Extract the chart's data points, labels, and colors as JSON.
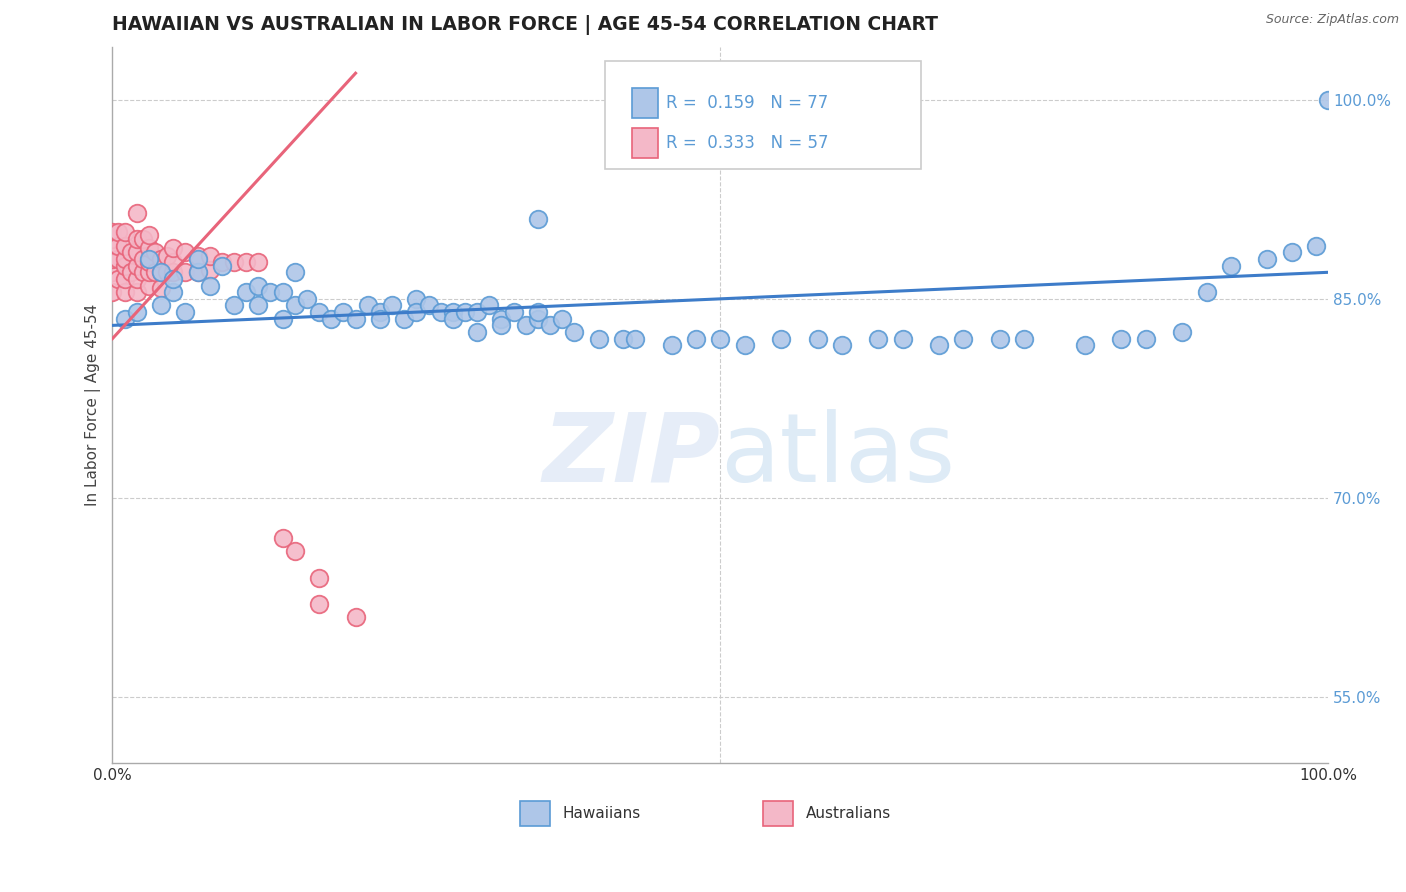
{
  "title": "HAWAIIAN VS AUSTRALIAN IN LABOR FORCE | AGE 45-54 CORRELATION CHART",
  "source_text": "Source: ZipAtlas.com",
  "ylabel": "In Labor Force | Age 45-54",
  "xlim": [
    0.0,
    1.0
  ],
  "ylim": [
    0.5,
    1.04
  ],
  "y_ticks_right": [
    0.55,
    0.7,
    0.85,
    1.0
  ],
  "y_tick_labels_right": [
    "55.0%",
    "70.0%",
    "85.0%",
    "100.0%"
  ],
  "hawaiian_R": "0.159",
  "hawaiian_N": "77",
  "australian_R": "0.333",
  "australian_N": "57",
  "hawaiian_color": "#aec6e8",
  "hawaiian_edge_color": "#5b9bd5",
  "australian_color": "#f4b8c8",
  "australian_edge_color": "#e8647a",
  "hawaiian_line_color": "#3d7cc9",
  "australian_line_color": "#e8647a",
  "watermark_zip": "ZIP",
  "watermark_atlas": "atlas",
  "hawaiians_x": [
    0.01,
    0.02,
    0.03,
    0.04,
    0.04,
    0.05,
    0.05,
    0.06,
    0.07,
    0.07,
    0.08,
    0.09,
    0.1,
    0.11,
    0.12,
    0.12,
    0.13,
    0.14,
    0.14,
    0.15,
    0.15,
    0.16,
    0.17,
    0.18,
    0.19,
    0.2,
    0.21,
    0.22,
    0.22,
    0.23,
    0.24,
    0.25,
    0.25,
    0.26,
    0.27,
    0.28,
    0.28,
    0.29,
    0.3,
    0.3,
    0.31,
    0.32,
    0.32,
    0.33,
    0.34,
    0.35,
    0.35,
    0.36,
    0.37,
    0.38,
    0.4,
    0.42,
    0.43,
    0.46,
    0.48,
    0.5,
    0.52,
    0.55,
    0.58,
    0.6,
    0.63,
    0.65,
    0.68,
    0.7,
    0.73,
    0.75,
    0.8,
    0.83,
    0.85,
    0.88,
    0.9,
    0.92,
    0.95,
    0.97,
    0.99,
    1.0,
    0.35
  ],
  "hawaiians_y": [
    0.835,
    0.84,
    0.88,
    0.845,
    0.87,
    0.855,
    0.865,
    0.84,
    0.87,
    0.88,
    0.86,
    0.875,
    0.845,
    0.855,
    0.845,
    0.86,
    0.855,
    0.835,
    0.855,
    0.845,
    0.87,
    0.85,
    0.84,
    0.835,
    0.84,
    0.835,
    0.845,
    0.84,
    0.835,
    0.845,
    0.835,
    0.85,
    0.84,
    0.845,
    0.84,
    0.84,
    0.835,
    0.84,
    0.825,
    0.84,
    0.845,
    0.835,
    0.83,
    0.84,
    0.83,
    0.835,
    0.84,
    0.83,
    0.835,
    0.825,
    0.82,
    0.82,
    0.82,
    0.815,
    0.82,
    0.82,
    0.815,
    0.82,
    0.82,
    0.815,
    0.82,
    0.82,
    0.815,
    0.82,
    0.82,
    0.82,
    0.815,
    0.82,
    0.82,
    0.825,
    0.855,
    0.875,
    0.88,
    0.885,
    0.89,
    1.0,
    0.91
  ],
  "australians_x": [
    0.0,
    0.0,
    0.0,
    0.0,
    0.0,
    0.0,
    0.005,
    0.005,
    0.005,
    0.005,
    0.01,
    0.01,
    0.01,
    0.01,
    0.01,
    0.01,
    0.015,
    0.015,
    0.02,
    0.02,
    0.02,
    0.02,
    0.02,
    0.02,
    0.025,
    0.025,
    0.025,
    0.03,
    0.03,
    0.03,
    0.03,
    0.03,
    0.035,
    0.035,
    0.04,
    0.04,
    0.04,
    0.045,
    0.045,
    0.05,
    0.05,
    0.05,
    0.06,
    0.06,
    0.07,
    0.07,
    0.08,
    0.08,
    0.09,
    0.1,
    0.11,
    0.12,
    0.14,
    0.15,
    0.17,
    0.17,
    0.2
  ],
  "australians_y": [
    0.855,
    0.87,
    0.88,
    0.89,
    0.895,
    0.9,
    0.865,
    0.88,
    0.89,
    0.9,
    0.855,
    0.865,
    0.875,
    0.88,
    0.89,
    0.9,
    0.87,
    0.885,
    0.855,
    0.865,
    0.875,
    0.885,
    0.895,
    0.915,
    0.87,
    0.88,
    0.895,
    0.86,
    0.87,
    0.878,
    0.888,
    0.898,
    0.87,
    0.885,
    0.858,
    0.87,
    0.88,
    0.87,
    0.882,
    0.87,
    0.878,
    0.888,
    0.87,
    0.885,
    0.87,
    0.882,
    0.872,
    0.882,
    0.878,
    0.878,
    0.878,
    0.878,
    0.67,
    0.66,
    0.62,
    0.64,
    0.61
  ]
}
